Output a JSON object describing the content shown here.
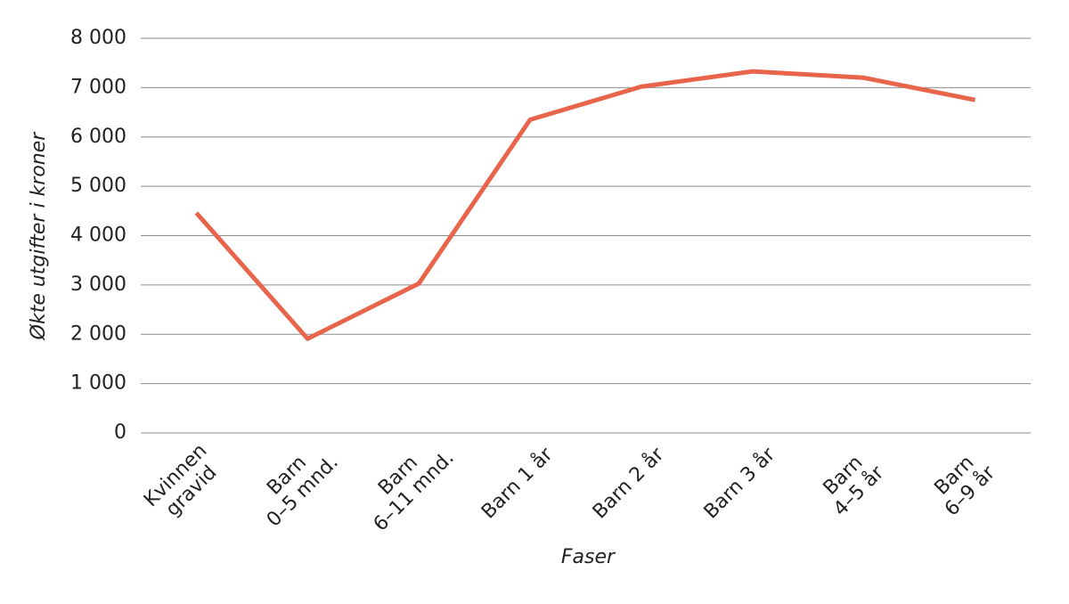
{
  "chart_data": {
    "type": "line",
    "y_label": "Økte utgifter i kroner",
    "x_label": "Faser",
    "categories": [
      "Kvinnen\ngravid",
      "Barn\n0–5 mnd.",
      "Barn\n6–11 mnd.",
      "Barn 1 år",
      "Barn 2 år",
      "Barn 3 år",
      "Barn\n4–5 år",
      "Barn\n6–9 år"
    ],
    "values": [
      4460,
      1910,
      3030,
      6350,
      7020,
      7330,
      7200,
      6750
    ],
    "color": "#e8644b",
    "ylim": [
      0,
      8000
    ],
    "yticks": [
      0,
      {
        "value": 1000,
        "label": "1 000"
      },
      {
        "value": 2000,
        "label": "2 000"
      },
      {
        "value": 3000,
        "label": "3 000"
      },
      {
        "value": 4000,
        "label": "4 000"
      },
      {
        "value": 5000,
        "label": "5 000"
      },
      {
        "value": 6000,
        "label": "6 000"
      },
      {
        "value": 7000,
        "label": "7 000"
      },
      {
        "value": 8000,
        "label": "8 000"
      }
    ],
    "grid": true
  }
}
